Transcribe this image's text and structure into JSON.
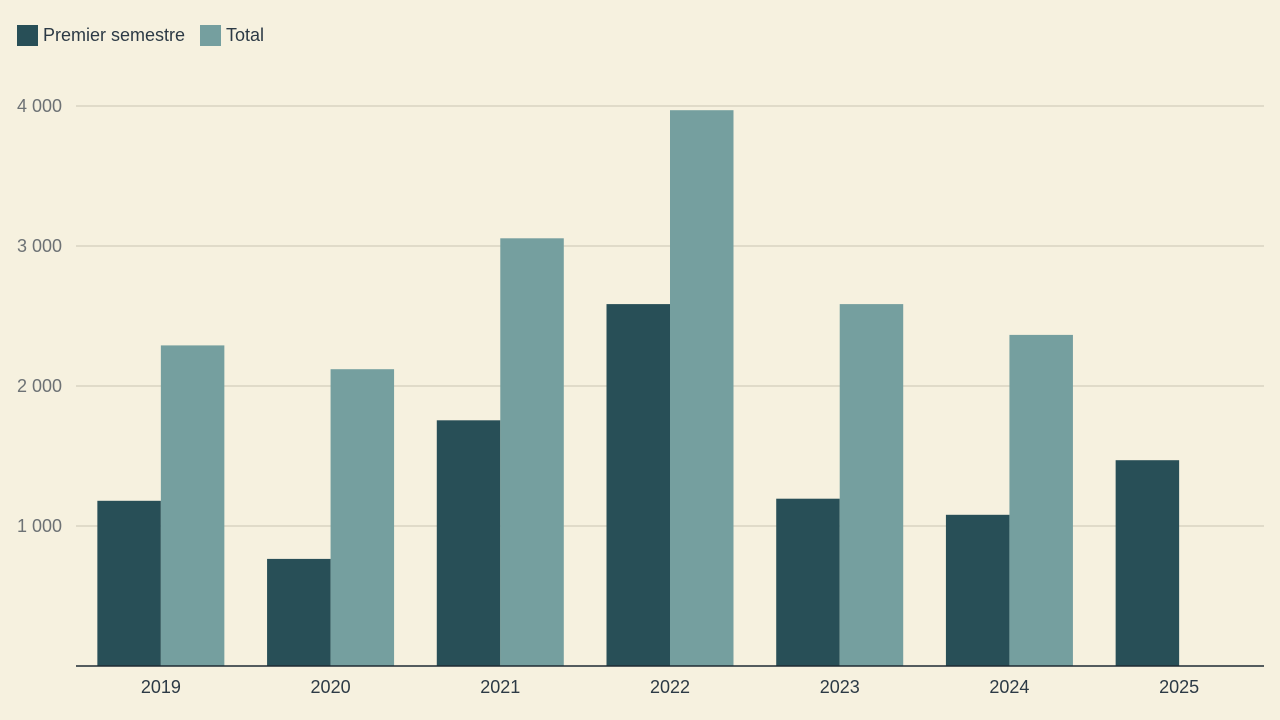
{
  "chart_data": {
    "type": "bar",
    "categories": [
      "2019",
      "2020",
      "2021",
      "2022",
      "2023",
      "2024",
      "2025"
    ],
    "series": [
      {
        "name": "Premier semestre",
        "color": "#284f57",
        "values": [
          1180,
          765,
          1755,
          2585,
          1195,
          1080,
          1470
        ]
      },
      {
        "name": "Total",
        "color": "#759f9f",
        "values": [
          2290,
          2120,
          3055,
          3970,
          2585,
          2365,
          null
        ]
      }
    ],
    "yticks": [
      1000,
      2000,
      3000,
      4000
    ],
    "ytick_labels": [
      "1 000",
      "2 000",
      "3 000",
      "4 000"
    ],
    "ylim": [
      0,
      4000
    ],
    "title": "",
    "xlabel": "",
    "ylabel": "",
    "grid": true,
    "legend_position": "top-left"
  }
}
